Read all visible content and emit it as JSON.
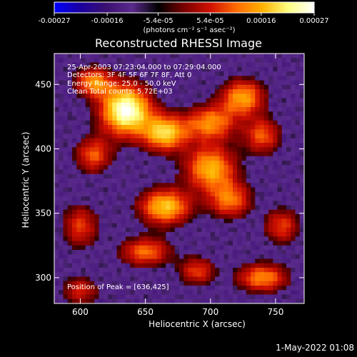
{
  "chart_data": {
    "type": "heatmap",
    "title": "Reconstructed RHESSI Image",
    "xlabel": "Heliocentric X (arcsec)",
    "ylabel": "Heliocentric Y (arcsec)",
    "xlim": [
      580,
      772
    ],
    "ylim": [
      280,
      474
    ],
    "x_ticks": [
      600,
      650,
      700,
      750
    ],
    "y_ticks": [
      300,
      350,
      400,
      450
    ],
    "colorbar": {
      "ticks": [
        "-0.00027",
        "-0.00016",
        "-5.4e-05",
        "5.4e-05",
        "0.00016",
        "0.00027"
      ],
      "tick_values": [
        -0.00027,
        -0.00016,
        -5.4e-05,
        5.4e-05,
        0.00016,
        0.00027
      ],
      "range": [
        -0.00027,
        0.00027
      ],
      "units_label": "(photons cm⁻² s⁻¹ asec⁻²)"
    },
    "annotations": [
      "25-Apr-2003 07:23:04.000 to 07:29:04.000",
      "Detectors: 3F 4F 5F 6F 7F 8F, Att 0",
      "Energy Range: 25.0 - 50.0 keV",
      "Clean     Total counts: 5.72E+03"
    ],
    "peak_label": "Position of Peak = [636,425]",
    "peak_position": [
      636,
      425
    ],
    "hot_regions": [
      {
        "x": 635,
        "y": 430,
        "intensity": 1.0,
        "sx": 14,
        "sy": 14
      },
      {
        "x": 610,
        "y": 452,
        "intensity": 0.6,
        "sx": 10,
        "sy": 8
      },
      {
        "x": 665,
        "y": 412,
        "intensity": 0.75,
        "sx": 12,
        "sy": 10
      },
      {
        "x": 700,
        "y": 420,
        "intensity": 0.6,
        "sx": 14,
        "sy": 10
      },
      {
        "x": 725,
        "y": 440,
        "intensity": 0.65,
        "sx": 12,
        "sy": 10
      },
      {
        "x": 740,
        "y": 410,
        "intensity": 0.5,
        "sx": 10,
        "sy": 10
      },
      {
        "x": 700,
        "y": 385,
        "intensity": 0.7,
        "sx": 14,
        "sy": 12
      },
      {
        "x": 665,
        "y": 355,
        "intensity": 0.75,
        "sx": 14,
        "sy": 10
      },
      {
        "x": 715,
        "y": 360,
        "intensity": 0.55,
        "sx": 12,
        "sy": 10
      },
      {
        "x": 610,
        "y": 395,
        "intensity": 0.5,
        "sx": 10,
        "sy": 10
      },
      {
        "x": 600,
        "y": 340,
        "intensity": 0.45,
        "sx": 10,
        "sy": 12
      },
      {
        "x": 650,
        "y": 320,
        "intensity": 0.55,
        "sx": 14,
        "sy": 8
      },
      {
        "x": 690,
        "y": 305,
        "intensity": 0.45,
        "sx": 10,
        "sy": 8
      },
      {
        "x": 740,
        "y": 300,
        "intensity": 0.6,
        "sx": 14,
        "sy": 8
      },
      {
        "x": 755,
        "y": 340,
        "intensity": 0.45,
        "sx": 10,
        "sy": 10
      },
      {
        "x": 600,
        "y": 290,
        "intensity": 0.4,
        "sx": 10,
        "sy": 8
      }
    ],
    "colormap": [
      "#0000ff",
      "#1a00a0",
      "#3a1070",
      "#5a2a8c",
      "#000000",
      "#7a0000",
      "#d01000",
      "#ff6a00",
      "#ffb000",
      "#ffff80",
      "#ffffff"
    ],
    "grid": false
  },
  "datestamp": "1-May-2022 01:08"
}
